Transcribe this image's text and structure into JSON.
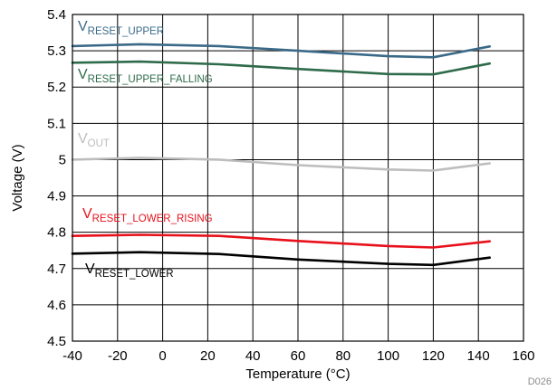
{
  "chart_data": {
    "type": "line",
    "title": "",
    "xlabel": "Temperature (°C)",
    "ylabel": "Voltage (V)",
    "xlim": [
      -40,
      160
    ],
    "ylim": [
      4.5,
      5.4
    ],
    "x_ticks": [
      "-40",
      "-20",
      "0",
      "20",
      "40",
      "60",
      "80",
      "100",
      "120",
      "140",
      "160"
    ],
    "y_ticks": [
      "4.5",
      "4.6",
      "4.7",
      "4.8",
      "4.9",
      "5",
      "5.1",
      "5.2",
      "5.3",
      "5.4"
    ],
    "grid": true,
    "figure_id": "D026",
    "series": [
      {
        "name": "V_RESET_UPPER",
        "label_main": "V",
        "label_sub": "RESET_UPPER",
        "color": "#3a6a88",
        "x": [
          -40,
          -10,
          25,
          60,
          100,
          120,
          145
        ],
        "y": [
          5.313,
          5.318,
          5.313,
          5.3,
          5.285,
          5.282,
          5.312
        ]
      },
      {
        "name": "V_RESET_UPPER_FALLING",
        "label_main": "V",
        "label_sub": "RESET_UPPER_FALLING",
        "color": "#2e6b4a",
        "x": [
          -40,
          -10,
          25,
          60,
          100,
          120,
          145
        ],
        "y": [
          5.267,
          5.27,
          5.263,
          5.25,
          5.236,
          5.235,
          5.265
        ]
      },
      {
        "name": "V_OUT",
        "label_main": "V",
        "label_sub": "OUT",
        "color": "#bdbdbd",
        "x": [
          -40,
          -10,
          25,
          60,
          100,
          120,
          145
        ],
        "y": [
          5.0,
          5.005,
          5.0,
          4.985,
          4.973,
          4.97,
          4.99
        ]
      },
      {
        "name": "V_RESET_LOWER_RISING",
        "label_main": "V",
        "label_sub": "RESET_LOWER_RISING",
        "color": "#e8101a",
        "x": [
          -40,
          -10,
          25,
          60,
          100,
          120,
          145
        ],
        "y": [
          4.79,
          4.793,
          4.79,
          4.776,
          4.762,
          4.758,
          4.775
        ]
      },
      {
        "name": "V_RESET_LOWER",
        "label_main": "V",
        "label_sub": "RESET_LOWER",
        "color": "#000000",
        "x": [
          -40,
          -10,
          25,
          60,
          100,
          120,
          145
        ],
        "y": [
          4.741,
          4.745,
          4.74,
          4.725,
          4.713,
          4.71,
          4.73
        ]
      }
    ]
  }
}
